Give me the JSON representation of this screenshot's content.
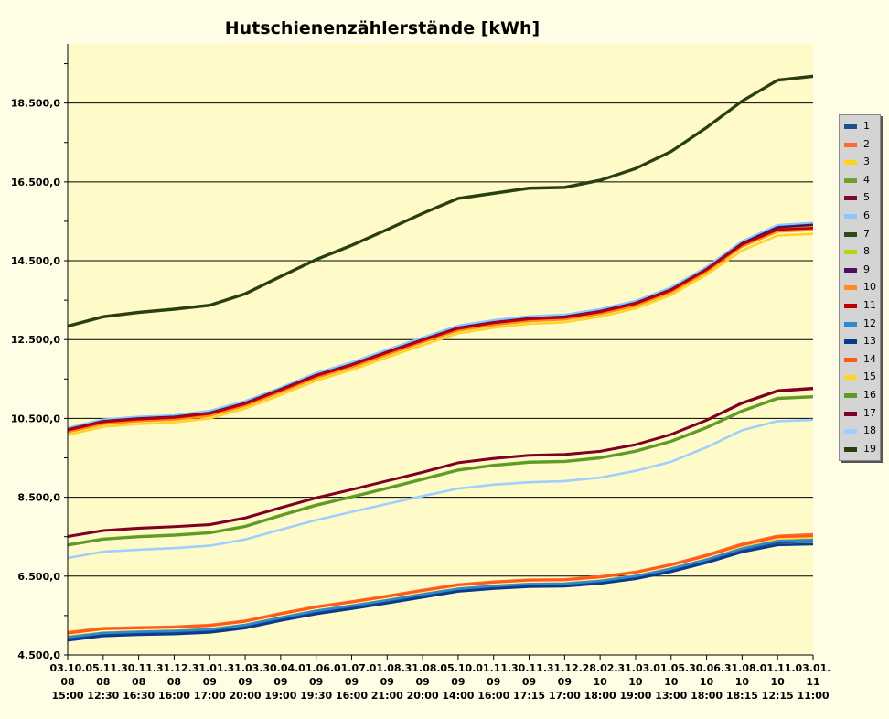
{
  "chart_data": {
    "type": "line",
    "title": "Hutschienenzählerstände [kWh]",
    "xlabel": "",
    "ylabel": "",
    "ylim": [
      4500,
      20000
    ],
    "y_ticks": [
      "4.500,0",
      "6.500,0",
      "8.500,0",
      "10.500,0",
      "12.500,0",
      "14.500,0",
      "16.500,0",
      "18.500,0"
    ],
    "y_tick_values": [
      4500,
      6500,
      8500,
      10500,
      12500,
      14500,
      16500,
      18500
    ],
    "grid": "horizontal major lines",
    "legend_position": "right",
    "background": "#fffbc8",
    "categories": [
      [
        "03.10.",
        "08",
        "15:00"
      ],
      [
        "05.11.",
        "08",
        "12:30"
      ],
      [
        "30.11.",
        "08",
        "16:30"
      ],
      [
        "31.12.",
        "08",
        "16:00"
      ],
      [
        "31.01.",
        "09",
        "17:00"
      ],
      [
        "31.03.",
        "09",
        "20:00"
      ],
      [
        "30.04.",
        "09",
        "19:00"
      ],
      [
        "01.06.",
        "09",
        "19:30"
      ],
      [
        "01.07.",
        "09",
        "16:00"
      ],
      [
        "01.08.",
        "09",
        "21:00"
      ],
      [
        "31.08.",
        "09",
        "20:00"
      ],
      [
        "05.10.",
        "09",
        "14:00"
      ],
      [
        "01.11.",
        "09",
        "16:00"
      ],
      [
        "30.11.",
        "09",
        "17:15"
      ],
      [
        "31.12.",
        "09",
        "17:00"
      ],
      [
        "28.02.",
        "10",
        "18:00"
      ],
      [
        "31.03.",
        "10",
        "19:00"
      ],
      [
        "01.05.",
        "10",
        "13:00"
      ],
      [
        "30.06.",
        "10",
        "18:00"
      ],
      [
        "31.08.",
        "10",
        "18:15"
      ],
      [
        "01.11.",
        "10",
        "12:15"
      ],
      [
        "03.01.",
        "11",
        "11:00"
      ]
    ],
    "series": [
      {
        "name": "1",
        "color": "#1f4e8c",
        "values": [
          4920,
          5030,
          5060,
          5080,
          5120,
          5230,
          5420,
          5590,
          5720,
          5860,
          6010,
          6160,
          6230,
          6280,
          6290,
          6360,
          6480,
          6660,
          6890,
          7160,
          7350,
          7380
        ]
      },
      {
        "name": "2",
        "color": "#ff6a2c",
        "values": [
          5080,
          5180,
          5200,
          5220,
          5260,
          5370,
          5560,
          5730,
          5860,
          6000,
          6150,
          6290,
          6360,
          6410,
          6420,
          6490,
          6610,
          6800,
          7040,
          7320,
          7520,
          7560
        ]
      },
      {
        "name": "3",
        "color": "#ffd21f",
        "values": [
          4970,
          5070,
          5100,
          5120,
          5160,
          5270,
          5460,
          5630,
          5760,
          5900,
          6050,
          6190,
          6260,
          6310,
          6320,
          6390,
          6510,
          6700,
          6930,
          7220,
          7420,
          7460
        ]
      },
      {
        "name": "4",
        "color": "#6ea12c",
        "values": [
          7300,
          7450,
          7510,
          7550,
          7610,
          7770,
          8050,
          8310,
          8520,
          8740,
          8970,
          9200,
          9320,
          9400,
          9420,
          9510,
          9680,
          9930,
          10280,
          10700,
          11020,
          11060
        ]
      },
      {
        "name": "5",
        "color": "#7a0a2e",
        "values": [
          7510,
          7660,
          7720,
          7760,
          7810,
          7980,
          8240,
          8490,
          8700,
          8920,
          9140,
          9380,
          9490,
          9570,
          9590,
          9670,
          9840,
          10100,
          10460,
          10900,
          11210,
          11270
        ]
      },
      {
        "name": "6",
        "color": "#8ec5ff",
        "values": [
          10260,
          10470,
          10540,
          10580,
          10690,
          10940,
          11280,
          11650,
          11920,
          12240,
          12550,
          12850,
          12990,
          13090,
          13130,
          13270,
          13480,
          13820,
          14340,
          14990,
          15400,
          15460
        ]
      },
      {
        "name": "7",
        "color": "#2e4a1a",
        "values": [
          12830,
          13070,
          13180,
          13260,
          13360,
          13650,
          14090,
          14520,
          14880,
          15280,
          15690,
          16070,
          16200,
          16330,
          16350,
          16530,
          16830,
          17260,
          17870,
          18540,
          19070,
          19170
        ]
      },
      {
        "name": "8",
        "color": "#b8d40c",
        "values": [
          10180,
          10390,
          10460,
          10500,
          10600,
          10850,
          11200,
          11560,
          11830,
          12150,
          12460,
          12760,
          12900,
          13000,
          13040,
          13180,
          13390,
          13730,
          14250,
          14900,
          15310,
          15370
        ]
      },
      {
        "name": "9",
        "color": "#4b1060",
        "values": [
          10220,
          10430,
          10500,
          10540,
          10640,
          10890,
          11240,
          11600,
          11870,
          12190,
          12500,
          12800,
          12940,
          13040,
          13080,
          13220,
          13430,
          13770,
          14290,
          14940,
          15350,
          15410
        ]
      },
      {
        "name": "10",
        "color": "#ff8c1a",
        "values": [
          10150,
          10360,
          10430,
          10470,
          10570,
          10820,
          11170,
          11530,
          11800,
          12120,
          12430,
          12730,
          12870,
          12970,
          13010,
          13150,
          13360,
          13700,
          14220,
          14860,
          15240,
          15280
        ]
      },
      {
        "name": "11",
        "color": "#c00000",
        "values": [
          10200,
          10410,
          10480,
          10520,
          10620,
          10870,
          11220,
          11580,
          11850,
          12170,
          12480,
          12780,
          12920,
          13020,
          13060,
          13200,
          13410,
          13750,
          14270,
          14910,
          15290,
          15330
        ]
      },
      {
        "name": "12",
        "color": "#2a8ad4",
        "values": [
          4950,
          5060,
          5090,
          5110,
          5150,
          5260,
          5450,
          5620,
          5750,
          5890,
          6040,
          6180,
          6250,
          6300,
          6310,
          6380,
          6500,
          6690,
          6920,
          7200,
          7390,
          7420
        ]
      },
      {
        "name": "13",
        "color": "#0a3a8a",
        "values": [
          4870,
          4980,
          5010,
          5030,
          5070,
          5180,
          5370,
          5540,
          5670,
          5810,
          5960,
          6110,
          6180,
          6230,
          6240,
          6310,
          6430,
          6610,
          6840,
          7110,
          7290,
          7310
        ]
      },
      {
        "name": "14",
        "color": "#ff5a1a",
        "values": [
          5050,
          5160,
          5180,
          5200,
          5240,
          5350,
          5540,
          5710,
          5840,
          5980,
          6130,
          6270,
          6340,
          6390,
          6400,
          6470,
          6590,
          6780,
          7010,
          7290,
          7490,
          7520
        ]
      },
      {
        "name": "15",
        "color": "#ffd42a",
        "values": [
          10080,
          10290,
          10360,
          10400,
          10500,
          10750,
          11100,
          11460,
          11730,
          12050,
          12360,
          12660,
          12800,
          12900,
          12940,
          13080,
          13290,
          13630,
          14150,
          14760,
          15140,
          15180
        ]
      },
      {
        "name": "16",
        "color": "#5e9a28",
        "values": [
          7280,
          7430,
          7490,
          7530,
          7590,
          7750,
          8030,
          8290,
          8500,
          8720,
          8950,
          9180,
          9300,
          9380,
          9400,
          9490,
          9660,
          9910,
          10260,
          10680,
          11000,
          11040
        ]
      },
      {
        "name": "17",
        "color": "#800020",
        "values": [
          7500,
          7650,
          7710,
          7750,
          7800,
          7970,
          8230,
          8480,
          8690,
          8910,
          9130,
          9370,
          9480,
          9560,
          9580,
          9660,
          9830,
          10090,
          10450,
          10880,
          11190,
          11250
        ]
      },
      {
        "name": "18",
        "color": "#9fcfff",
        "values": [
          6960,
          7120,
          7170,
          7210,
          7270,
          7430,
          7680,
          7920,
          8130,
          8330,
          8530,
          8720,
          8820,
          8880,
          8910,
          9000,
          9170,
          9400,
          9770,
          10200,
          10430,
          10460
        ]
      },
      {
        "name": "19",
        "color": "#2a3d10",
        "values": [
          12850,
          13090,
          13200,
          13280,
          13380,
          13670,
          14110,
          14540,
          14900,
          15300,
          15710,
          16090,
          16220,
          16350,
          16370,
          16550,
          16850,
          17280,
          17890,
          18560,
          19090,
          19190
        ]
      }
    ]
  }
}
